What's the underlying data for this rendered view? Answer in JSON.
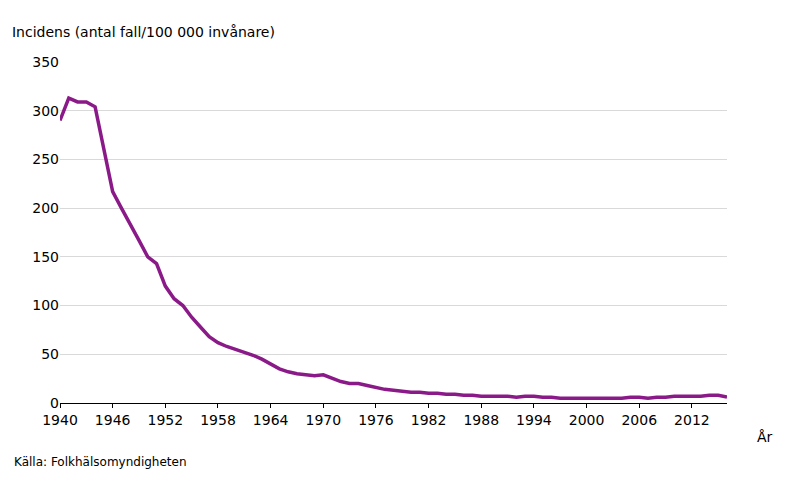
{
  "chart_data": {
    "type": "line",
    "title": "Incidens (antal fall/100 000 invånare)",
    "x_label": "År",
    "source": "Källa: Folkhälsomyndigheten",
    "x": [
      1940,
      1941,
      1942,
      1943,
      1944,
      1945,
      1946,
      1947,
      1948,
      1949,
      1950,
      1951,
      1952,
      1953,
      1954,
      1955,
      1956,
      1957,
      1958,
      1959,
      1960,
      1961,
      1962,
      1963,
      1964,
      1965,
      1966,
      1967,
      1968,
      1969,
      1970,
      1971,
      1972,
      1973,
      1974,
      1975,
      1976,
      1977,
      1978,
      1979,
      1980,
      1981,
      1982,
      1983,
      1984,
      1985,
      1986,
      1987,
      1988,
      1989,
      1990,
      1991,
      1992,
      1993,
      1994,
      1995,
      1996,
      1997,
      1998,
      1999,
      2000,
      2001,
      2002,
      2003,
      2004,
      2005,
      2006,
      2007,
      2008,
      2009,
      2010,
      2011,
      2012,
      2013,
      2014,
      2015,
      2016
    ],
    "values": [
      290,
      313,
      309,
      309,
      304,
      260,
      217,
      200,
      184,
      167,
      150,
      143,
      120,
      107,
      100,
      88,
      78,
      68,
      62,
      58,
      55,
      52,
      49,
      45,
      40,
      35,
      32,
      30,
      29,
      28,
      29,
      25,
      22,
      20,
      20,
      18,
      16,
      14,
      13,
      12,
      11,
      11,
      10,
      10,
      9,
      9,
      8,
      8,
      7,
      7,
      7,
      7,
      6,
      7,
      7,
      6,
      6,
      5,
      5,
      5,
      5,
      5,
      5,
      5,
      5,
      6,
      6,
      5,
      6,
      6,
      7,
      7,
      7,
      7,
      8,
      8,
      6
    ],
    "color": "#8b1a89",
    "xlim": [
      1940,
      2016
    ],
    "xticks": [
      1940,
      1946,
      1952,
      1958,
      1964,
      1970,
      1976,
      1982,
      1988,
      1994,
      2000,
      2006,
      2012
    ],
    "ylim": [
      0,
      350
    ],
    "yticks": [
      0,
      50,
      100,
      150,
      200,
      250,
      300,
      350
    ],
    "grid": true
  }
}
